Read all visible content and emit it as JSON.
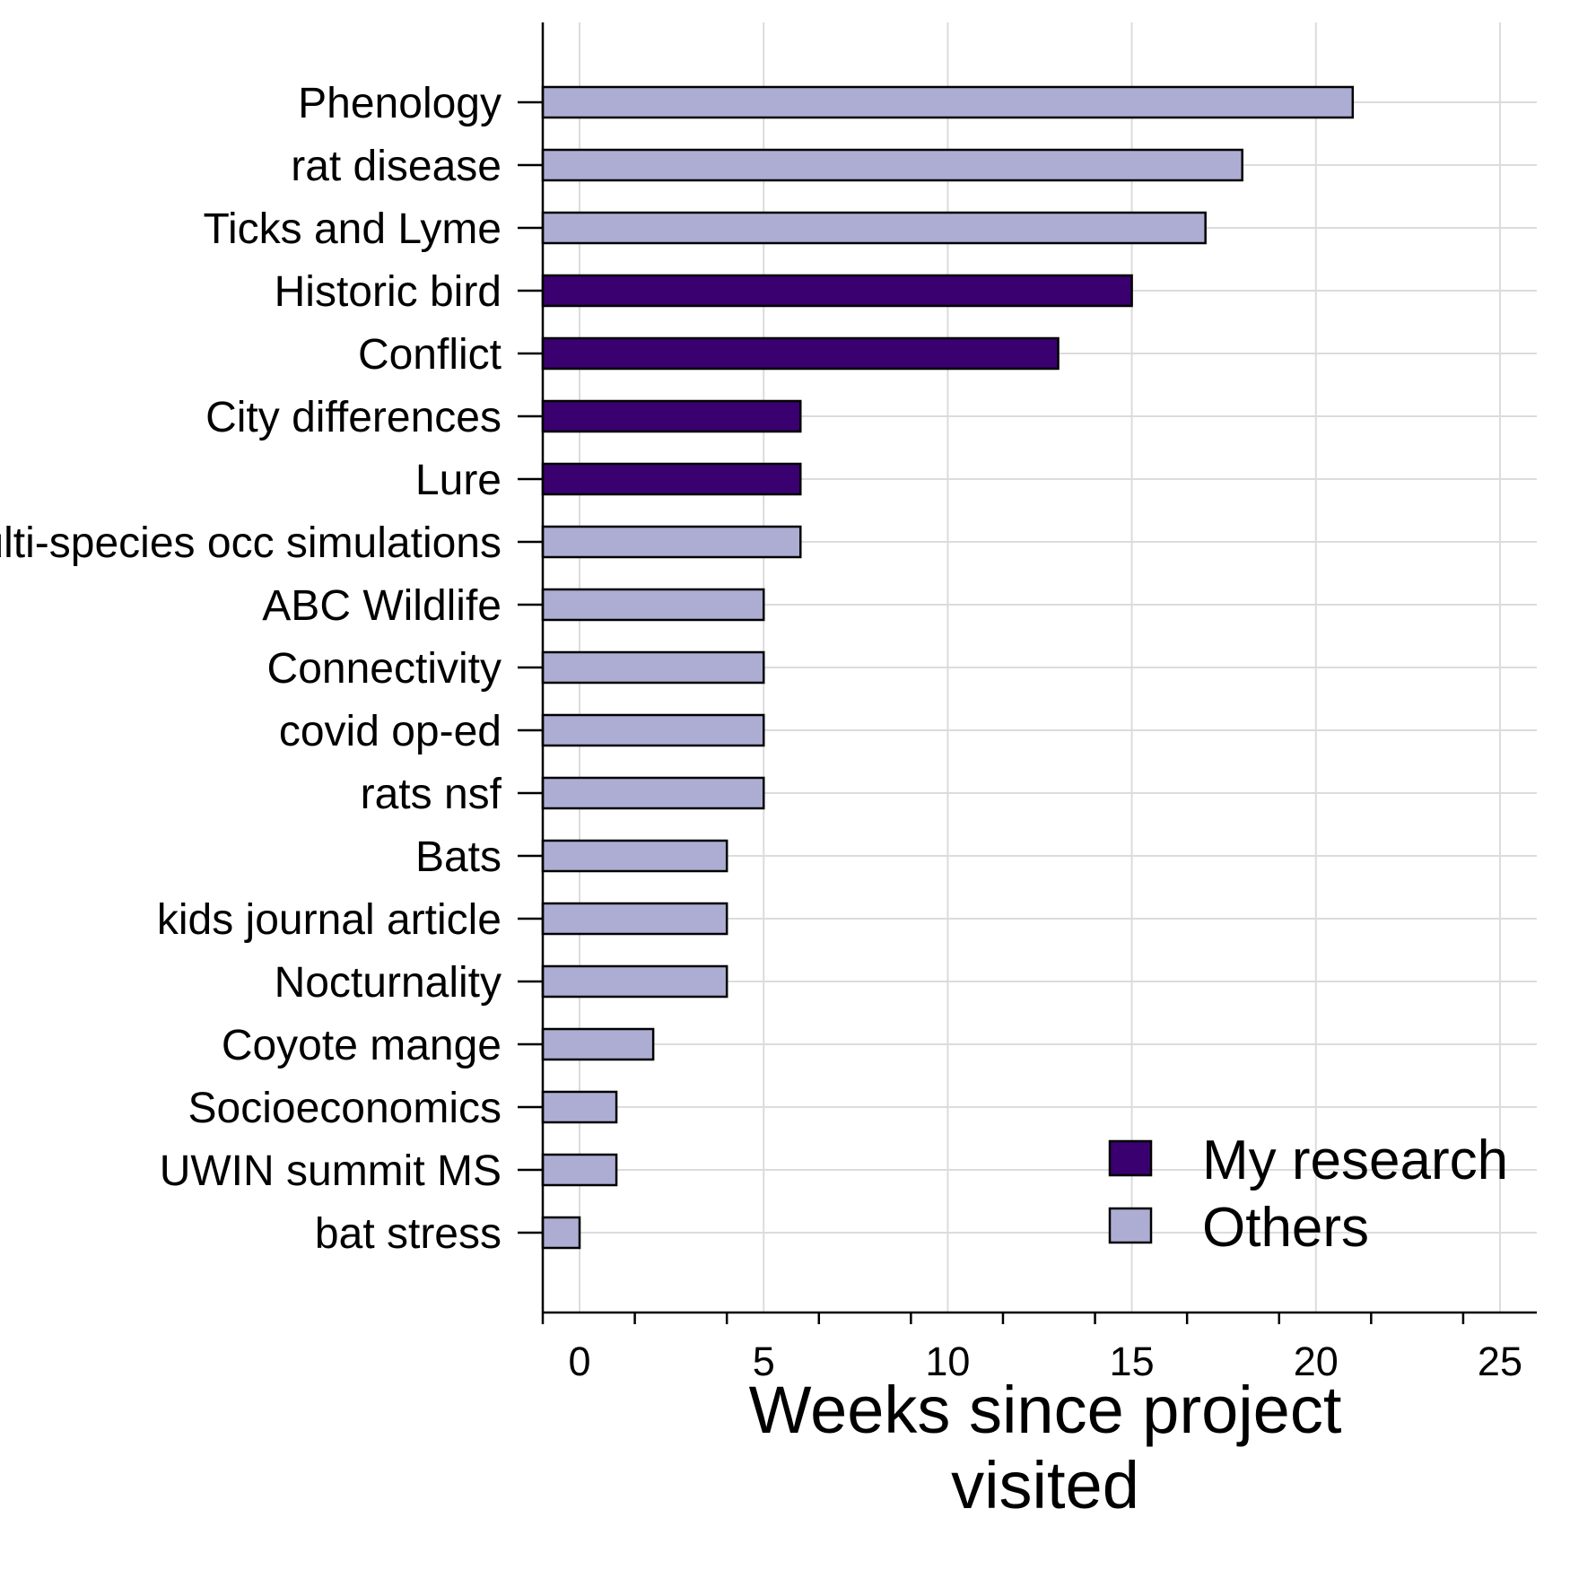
{
  "chart_data": {
    "type": "bar",
    "orientation": "horizontal",
    "title": "",
    "xlabel": "Weeks since project visited",
    "xlabel_lines": [
      "Weeks since project",
      "visited"
    ],
    "ylabel": "",
    "xlim": [
      -1,
      26
    ],
    "xticks": [
      0,
      5,
      10,
      15,
      20,
      25
    ],
    "grid": true,
    "legend_position": "bottom-right",
    "categories": [
      "Phenology",
      "rat disease",
      "Ticks and Lyme",
      "Historic bird",
      "Conflict",
      "City differences",
      "Lure",
      "Multi-species occ simulations",
      "ABC Wildlife",
      "Connectivity",
      "covid op-ed",
      "rats nsf",
      "Bats",
      "kids journal article",
      "Nocturnality",
      "Coyote mange",
      "Socioeconomics",
      "UWIN summit MS",
      "bat stress"
    ],
    "values": [
      21,
      18,
      17,
      15,
      13,
      6,
      6,
      6,
      5,
      5,
      5,
      5,
      4,
      4,
      4,
      2,
      1,
      1,
      0
    ],
    "groups": [
      "Others",
      "Others",
      "Others",
      "My research",
      "My research",
      "My research",
      "My research",
      "Others",
      "Others",
      "Others",
      "Others",
      "Others",
      "Others",
      "Others",
      "Others",
      "Others",
      "Others",
      "Others",
      "Others"
    ],
    "legend": [
      {
        "name": "My research",
        "color": "#3a006f"
      },
      {
        "name": "Others",
        "color": "#adadd4"
      }
    ]
  }
}
